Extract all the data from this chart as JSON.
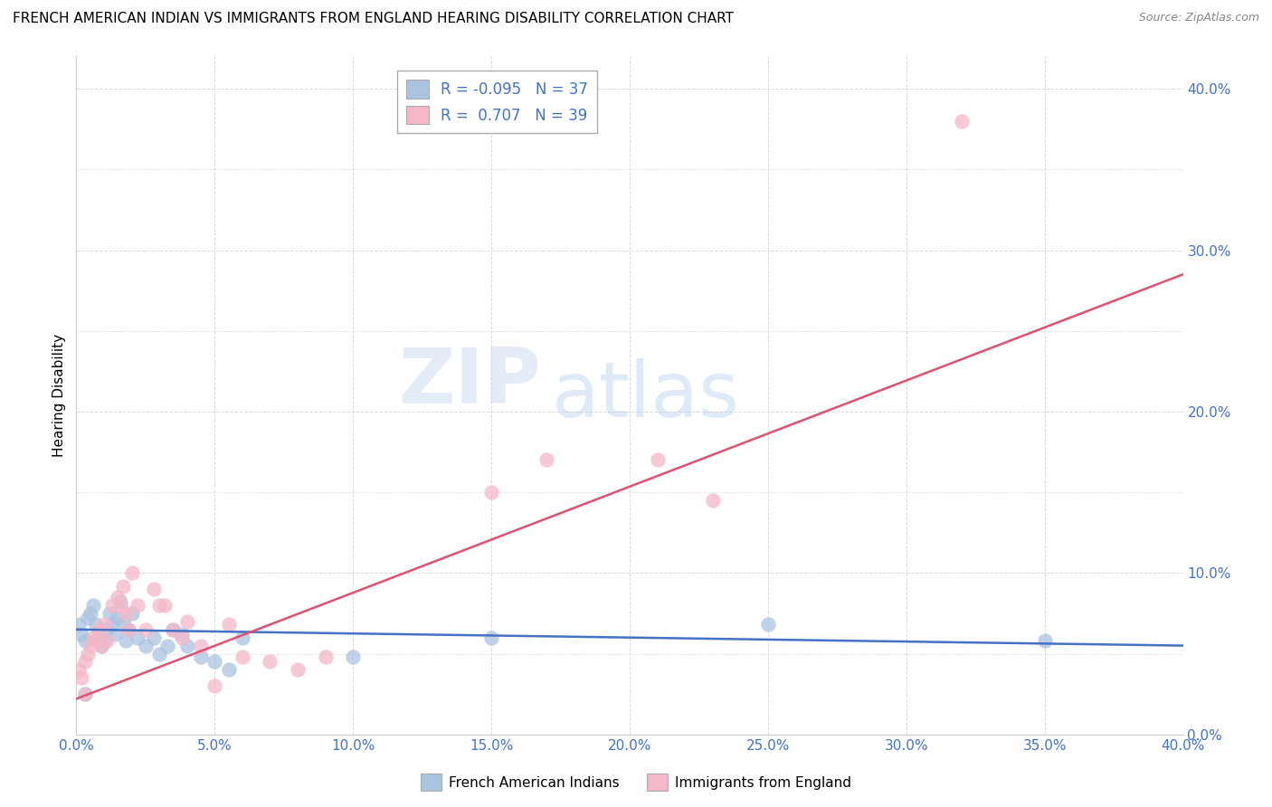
{
  "title": "FRENCH AMERICAN INDIAN VS IMMIGRANTS FROM ENGLAND HEARING DISABILITY CORRELATION CHART",
  "source": "Source: ZipAtlas.com",
  "ylabel": "Hearing Disability",
  "xlim": [
    0.0,
    0.4
  ],
  "ylim": [
    0.0,
    0.42
  ],
  "xticks": [
    0.0,
    0.05,
    0.1,
    0.15,
    0.2,
    0.25,
    0.3,
    0.35,
    0.4
  ],
  "yticks": [
    0.0,
    0.1,
    0.2,
    0.3,
    0.4
  ],
  "series1_name": "French American Indians",
  "series1_color": "#aac4e0",
  "series1_edge_color": "#7aacd4",
  "series1_line_color": "#4472c4",
  "series1_R": "-0.095",
  "series1_N": "37",
  "series1_x": [
    0.001,
    0.002,
    0.003,
    0.004,
    0.005,
    0.006,
    0.007,
    0.008,
    0.009,
    0.01,
    0.011,
    0.012,
    0.013,
    0.014,
    0.015,
    0.016,
    0.017,
    0.018,
    0.019,
    0.02,
    0.022,
    0.025,
    0.028,
    0.03,
    0.033,
    0.035,
    0.038,
    0.04,
    0.045,
    0.05,
    0.055,
    0.06,
    0.1,
    0.15,
    0.25,
    0.35,
    0.003
  ],
  "series1_y": [
    0.068,
    0.062,
    0.058,
    0.072,
    0.075,
    0.08,
    0.068,
    0.06,
    0.055,
    0.058,
    0.065,
    0.075,
    0.068,
    0.062,
    0.072,
    0.082,
    0.07,
    0.058,
    0.065,
    0.075,
    0.06,
    0.055,
    0.06,
    0.05,
    0.055,
    0.065,
    0.062,
    0.055,
    0.048,
    0.045,
    0.04,
    0.06,
    0.048,
    0.06,
    0.068,
    0.058,
    0.025
  ],
  "series2_name": "Immigrants from England",
  "series2_color": "#f4b8c8",
  "series2_edge_color": "#e090a8",
  "series2_line_color": "#e05070",
  "series2_R": "0.707",
  "series2_N": "39",
  "series2_x": [
    0.001,
    0.002,
    0.003,
    0.004,
    0.005,
    0.006,
    0.007,
    0.008,
    0.009,
    0.01,
    0.011,
    0.013,
    0.015,
    0.016,
    0.017,
    0.018,
    0.019,
    0.02,
    0.022,
    0.025,
    0.028,
    0.03,
    0.032,
    0.035,
    0.038,
    0.04,
    0.045,
    0.05,
    0.055,
    0.06,
    0.07,
    0.08,
    0.09,
    0.15,
    0.17,
    0.21,
    0.23,
    0.32,
    0.003
  ],
  "series2_y": [
    0.04,
    0.035,
    0.045,
    0.05,
    0.055,
    0.06,
    0.058,
    0.065,
    0.055,
    0.068,
    0.058,
    0.08,
    0.085,
    0.08,
    0.092,
    0.075,
    0.065,
    0.1,
    0.08,
    0.065,
    0.09,
    0.08,
    0.08,
    0.065,
    0.06,
    0.07,
    0.055,
    0.03,
    0.068,
    0.048,
    0.045,
    0.04,
    0.048,
    0.15,
    0.17,
    0.17,
    0.145,
    0.38,
    0.025
  ],
  "watermark_zip": "ZIP",
  "watermark_atlas": "atlas"
}
